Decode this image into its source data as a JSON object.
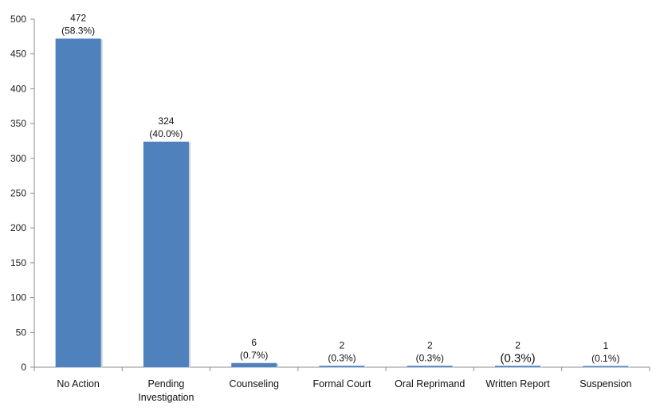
{
  "chart_data": {
    "type": "bar",
    "title": "",
    "xlabel": "",
    "ylabel": "",
    "ylim": [
      0,
      500
    ],
    "yticks": [
      0,
      50,
      100,
      150,
      200,
      250,
      300,
      350,
      400,
      450,
      500
    ],
    "grid": false,
    "legend": "none",
    "bar_color": "#4f81bd",
    "categories": [
      [
        "No Action"
      ],
      [
        "Pending",
        "Investigation"
      ],
      [
        "Counseling"
      ],
      [
        "Formal Court"
      ],
      [
        "Oral Reprimand"
      ],
      [
        "Written Report"
      ],
      [
        "Suspension"
      ]
    ],
    "values": [
      472,
      324,
      6,
      2,
      2,
      2,
      1
    ],
    "data_labels": [
      [
        "472",
        "(58.3%)"
      ],
      [
        "324",
        "(40.0%)"
      ],
      [
        "6",
        "(0.7%)"
      ],
      [
        "2",
        "(0.3%)"
      ],
      [
        "2",
        "(0.3%)"
      ],
      [
        "2",
        "(0.3%)"
      ],
      [
        "1",
        "(0.1%)"
      ]
    ]
  }
}
